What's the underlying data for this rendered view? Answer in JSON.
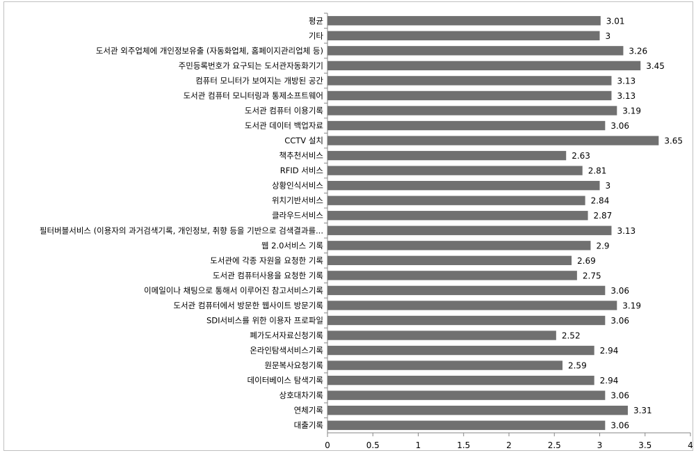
{
  "chart_data": {
    "type": "bar",
    "orientation": "horizontal",
    "title": "",
    "xlabel": "",
    "ylabel": "",
    "xlim": [
      0,
      4
    ],
    "x_ticks": [
      "0",
      "0.5",
      "1",
      "1.5",
      "2",
      "2.5",
      "3",
      "3.5",
      "4"
    ],
    "grid": false,
    "bar_color": "#707070",
    "categories": [
      "평균",
      "기타",
      "도서관 외주업체에 개인정보유출 (자동화업체, 홈페이지관리업체 등)",
      "주민등록번호가 요구되는 도서관자동화기기",
      "컴퓨터 모니터가 보여지는 개방된 공간",
      "도서관 컴퓨터 모니터링과 통제소프트웨어",
      "도서관 컴퓨터 이용기록",
      "도서관 데이터 백업자료",
      "CCTV 설치",
      "책추천서비스",
      "RFID 서비스",
      "상황인식서비스",
      "위치기반서비스",
      "클라우드서비스",
      "필터버블서비스 (이용자의 과거검색기록, 개인정보, 취향 등을 기반으로 검색결과를...",
      "웹 2.0서비스 기록",
      "도서관에 각종 자원을 요청한 기록",
      "도서관 컴퓨터사용을 요청한 기록",
      "이메일이나 채팅으로 통해서 이루어진 참고서비스기록",
      "도서관 컴퓨터에서 방문한 웹사이트 방문기록",
      "SDI서비스를 위한 이용자 프로파일",
      "폐가도서자료신청기록",
      "온라인탐색서비스기록",
      "원문복사요청기록",
      "데이터베이스 탐색기록",
      "상호대차기록",
      "연체기록",
      "대출기록"
    ],
    "values": [
      3.01,
      3,
      3.26,
      3.45,
      3.13,
      3.13,
      3.19,
      3.06,
      3.65,
      2.63,
      2.81,
      3,
      2.84,
      2.87,
      3.13,
      2.9,
      2.69,
      2.75,
      3.06,
      3.19,
      3.06,
      2.52,
      2.94,
      2.59,
      2.94,
      3.06,
      3.31,
      3.06
    ],
    "value_labels": [
      "3.01",
      "3",
      "3.26",
      "3.45",
      "3.13",
      "3.13",
      "3.19",
      "3.06",
      "3.65",
      "2.63",
      "2.81",
      "3",
      "2.84",
      "2.87",
      "3.13",
      "2.9",
      "2.69",
      "2.75",
      "3.06",
      "3.19",
      "3.06",
      "2.52",
      "2.94",
      "2.59",
      "2.94",
      "3.06",
      "3.31",
      "3.06"
    ]
  }
}
